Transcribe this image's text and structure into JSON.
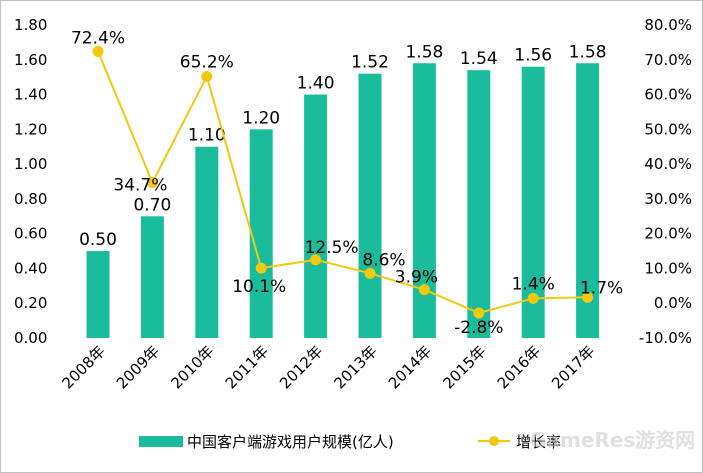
{
  "chart_data": {
    "type": "bar+line",
    "categories": [
      "2008年",
      "2009年",
      "2010年",
      "2011年",
      "2012年",
      "2013年",
      "2014年",
      "2015年",
      "2016年",
      "2017年"
    ],
    "series": [
      {
        "name": "中国客户端游戏用户规模(亿人)",
        "type": "bar",
        "axis": "left",
        "values": [
          0.5,
          0.7,
          1.1,
          1.2,
          1.4,
          1.52,
          1.58,
          1.54,
          1.56,
          1.58
        ],
        "labels": [
          "0.50",
          "0.70",
          "1.10",
          "1.20",
          "1.40",
          "1.52",
          "1.58",
          "1.54",
          "1.56",
          "1.58"
        ]
      },
      {
        "name": "增长率",
        "type": "line",
        "axis": "right",
        "values": [
          72.4,
          34.7,
          65.2,
          10.1,
          12.5,
          8.6,
          3.9,
          -2.8,
          1.4,
          1.7
        ],
        "labels": [
          "72.4%",
          "34.7%",
          "65.2%",
          "10.1%",
          "12.5%",
          "8.6%",
          "3.9%",
          "-2.8%",
          "1.4%",
          "1.7%"
        ]
      }
    ],
    "y_left": {
      "ylim": [
        0,
        1.8
      ],
      "ticks": [
        "0.00",
        "0.20",
        "0.40",
        "0.60",
        "0.80",
        "1.00",
        "1.20",
        "1.40",
        "1.60",
        "1.80"
      ]
    },
    "y_right": {
      "ylim": [
        -10,
        80
      ],
      "ticks": [
        "-10.0%",
        "0.0%",
        "10.0%",
        "20.0%",
        "30.0%",
        "40.0%",
        "50.0%",
        "60.0%",
        "70.0%",
        "80.0%"
      ]
    },
    "legend_position": "bottom",
    "grid": false,
    "colors": {
      "bar": "#1ABC9C",
      "line": "#F2C811",
      "marker": "#F2C811"
    }
  },
  "watermark": "GameRes游资网"
}
